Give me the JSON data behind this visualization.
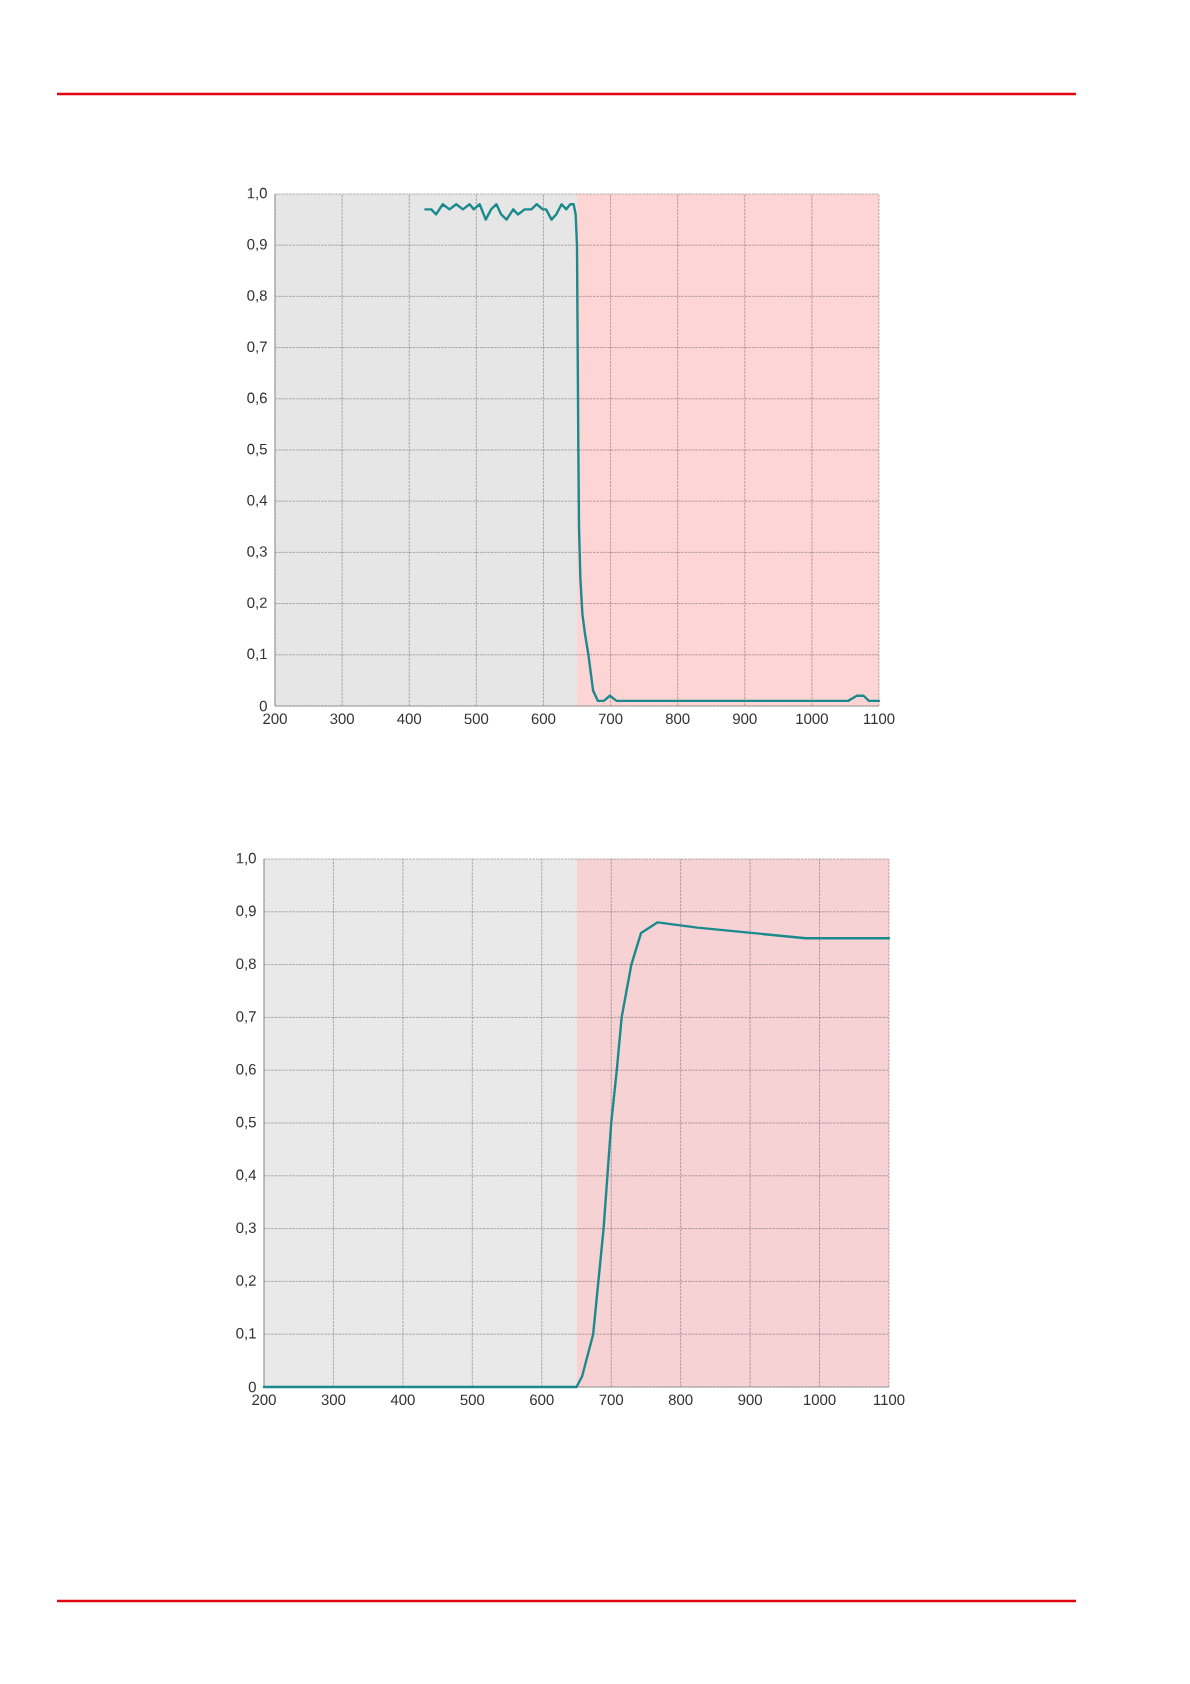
{
  "chart_data": [
    {
      "type": "line",
      "x": [
        424,
        433,
        440,
        450,
        460,
        470,
        480,
        490,
        496,
        505,
        514,
        522,
        530,
        537,
        545,
        555,
        562,
        572,
        582,
        590,
        599,
        604,
        612,
        619,
        627,
        634,
        640,
        645,
        648,
        650,
        651,
        652,
        653,
        655,
        658,
        662,
        667,
        674,
        681,
        690,
        699,
        709,
        729,
        800,
        900,
        1000,
        1054,
        1067,
        1077,
        1085,
        1100
      ],
      "series": [
        {
          "color": "#1b8a8c",
          "values": [
            0.97,
            0.97,
            0.96,
            0.98,
            0.97,
            0.98,
            0.97,
            0.98,
            0.97,
            0.98,
            0.95,
            0.97,
            0.98,
            0.96,
            0.95,
            0.97,
            0.96,
            0.97,
            0.97,
            0.98,
            0.97,
            0.97,
            0.95,
            0.96,
            0.98,
            0.97,
            0.98,
            0.98,
            0.96,
            0.9,
            0.7,
            0.5,
            0.35,
            0.25,
            0.18,
            0.14,
            0.1,
            0.03,
            0.01,
            0.01,
            0.02,
            0.01,
            0.01,
            0.01,
            0.01,
            0.01,
            0.01,
            0.02,
            0.02,
            0.01,
            0.01
          ]
        }
      ],
      "xlim": [
        200,
        1100
      ],
      "ylim": [
        0,
        1
      ],
      "xticks": [
        200,
        300,
        400,
        500,
        600,
        700,
        800,
        900,
        1000,
        1100
      ],
      "yticks": [
        0,
        {
          "value": 0.1,
          "label": "0,1"
        },
        {
          "value": 0.2,
          "label": "0,2"
        },
        {
          "value": 0.3,
          "label": "0,3"
        },
        {
          "value": 0.4,
          "label": "0,4"
        },
        {
          "value": 0.5,
          "label": "0,5"
        },
        {
          "value": 0.6,
          "label": "0,6"
        },
        {
          "value": 0.7,
          "label": "0,7"
        },
        {
          "value": 0.8,
          "label": "0,8"
        },
        {
          "value": 0.9,
          "label": "0,9"
        },
        {
          "value": 1,
          "label": "1,0"
        }
      ],
      "grid": true,
      "bands": [
        {
          "axis": "x",
          "from": 200,
          "to": 650,
          "color": "#e6e6e6"
        },
        {
          "axis": "x",
          "from": 650,
          "to": 1100,
          "color": "#fdd5d5"
        }
      ]
    },
    {
      "type": "line",
      "x": [
        200,
        400,
        600,
        650,
        658,
        674,
        689,
        700,
        708,
        715,
        729,
        743,
        767,
        824,
        902,
        980,
        1042,
        1100
      ],
      "series": [
        {
          "color": "#1b8a8c",
          "values": [
            0,
            0,
            0,
            0,
            0.02,
            0.1,
            0.3,
            0.5,
            0.6,
            0.7,
            0.8,
            0.86,
            0.88,
            0.87,
            0.86,
            0.85,
            0.85,
            0.85
          ]
        }
      ],
      "xlim": [
        200,
        1100
      ],
      "ylim": [
        0,
        1
      ],
      "xticks": [
        200,
        300,
        400,
        500,
        600,
        700,
        800,
        900,
        1000,
        1100
      ],
      "yticks": [
        0,
        {
          "value": 0.1,
          "label": "0,1"
        },
        {
          "value": 0.2,
          "label": "0,2"
        },
        {
          "value": 0.3,
          "label": "0,3"
        },
        {
          "value": 0.4,
          "label": "0,4"
        },
        {
          "value": 0.5,
          "label": "0,5"
        },
        {
          "value": 0.6,
          "label": "0,6"
        },
        {
          "value": 0.7,
          "label": "0,7"
        },
        {
          "value": 0.8,
          "label": "0,8"
        },
        {
          "value": 0.9,
          "label": "0,9"
        },
        {
          "value": 1,
          "label": "1,0"
        }
      ],
      "grid": true,
      "bands": [
        {
          "axis": "x",
          "from": 200,
          "to": 650,
          "color": "#e9e9e9"
        },
        {
          "axis": "x",
          "from": 650,
          "to": 1100,
          "color": "#f6d2d5"
        }
      ]
    }
  ]
}
